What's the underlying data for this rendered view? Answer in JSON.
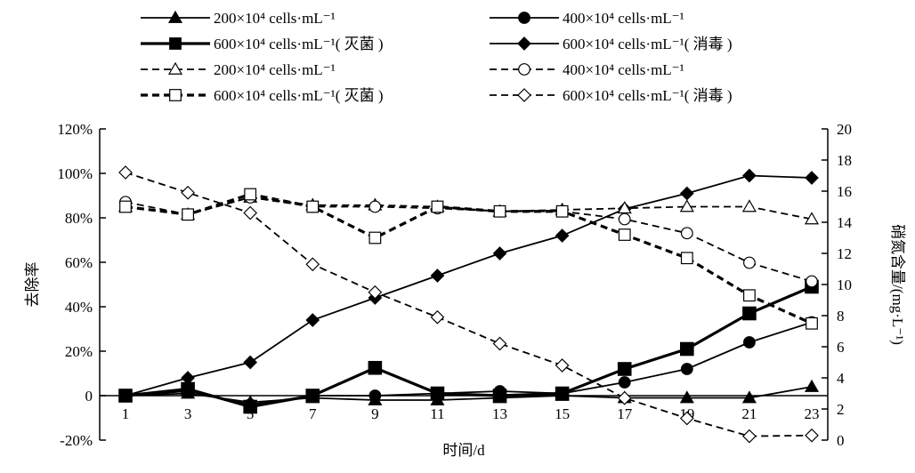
{
  "chart_data": {
    "type": "line",
    "xlabel": "时间/d",
    "ylabel_left": "去除率",
    "ylabel_right": "硝氮含量/(mg·L⁻¹)",
    "x": [
      1,
      3,
      5,
      7,
      9,
      11,
      13,
      15,
      17,
      19,
      21,
      23
    ],
    "x_ticks": [
      "1",
      "3",
      "5",
      "7",
      "9",
      "11",
      "13",
      "15",
      "17",
      "19",
      "21",
      "23"
    ],
    "ylim_left": [
      -20,
      120
    ],
    "yticks_left": [
      "-20%",
      "0",
      "20%",
      "40%",
      "60%",
      "80%",
      "100%",
      "120%"
    ],
    "ylim_right": [
      0,
      20
    ],
    "yticks_right": [
      "0",
      "2",
      "4",
      "6",
      "8",
      "10",
      "12",
      "14",
      "16",
      "18",
      "20"
    ],
    "grid": false,
    "legend_placement": "top",
    "series": [
      {
        "name": "200×10⁴ cells·mL⁻¹",
        "axis": "left",
        "style": "solid",
        "marker": "triangle-filled",
        "values": [
          0,
          1,
          -3,
          -1,
          -2,
          -2,
          -1,
          0,
          -1,
          -1,
          -1,
          4
        ]
      },
      {
        "name": "400×10⁴ cells·mL⁻¹",
        "axis": "left",
        "style": "solid",
        "marker": "circle-filled",
        "values": [
          0,
          2,
          -4,
          0,
          0,
          1,
          2,
          1,
          6,
          12,
          24,
          33
        ]
      },
      {
        "name": "600×10⁴ cells·mL⁻¹( 灭菌 )",
        "axis": "left",
        "style": "solid-bold",
        "marker": "square-filled",
        "values": [
          0,
          3,
          -5,
          0,
          12.5,
          1,
          0,
          1,
          12,
          21,
          37,
          49
        ]
      },
      {
        "name": "600×10⁴ cells·mL⁻¹( 消毒 )",
        "axis": "left",
        "style": "solid",
        "marker": "diamond-filled",
        "values": [
          0,
          8,
          15,
          34,
          44,
          54,
          64,
          72,
          84,
          91,
          99,
          98
        ]
      },
      {
        "name": "200×10⁴ cells·mL⁻¹",
        "axis": "right",
        "style": "dashed",
        "marker": "triangle-open",
        "values": [
          15.0,
          14.5,
          15.6,
          15.1,
          15.1,
          15.0,
          14.7,
          14.8,
          14.9,
          15.0,
          15.0,
          14.2
        ]
      },
      {
        "name": "400×10⁴ cells·mL⁻¹",
        "axis": "right",
        "style": "dashed",
        "marker": "circle-open",
        "values": [
          15.3,
          14.5,
          15.6,
          15.0,
          15.0,
          14.9,
          14.7,
          14.7,
          14.2,
          13.3,
          11.4,
          10.2
        ]
      },
      {
        "name": "600×10⁴ cells·mL⁻¹( 灭菌 )",
        "axis": "right",
        "style": "dashed-bold",
        "marker": "square-open",
        "values": [
          15.0,
          14.5,
          15.8,
          15.0,
          13.0,
          15.0,
          14.7,
          14.7,
          13.2,
          11.7,
          9.3,
          7.5
        ]
      },
      {
        "name": "600×10⁴ cells·mL⁻¹( 消毒 )",
        "axis": "right",
        "style": "dashed",
        "marker": "diamond-open",
        "values": [
          17.2,
          15.9,
          14.6,
          11.3,
          9.5,
          7.9,
          6.2,
          4.8,
          2.7,
          1.4,
          0.25,
          0.3
        ]
      }
    ]
  }
}
